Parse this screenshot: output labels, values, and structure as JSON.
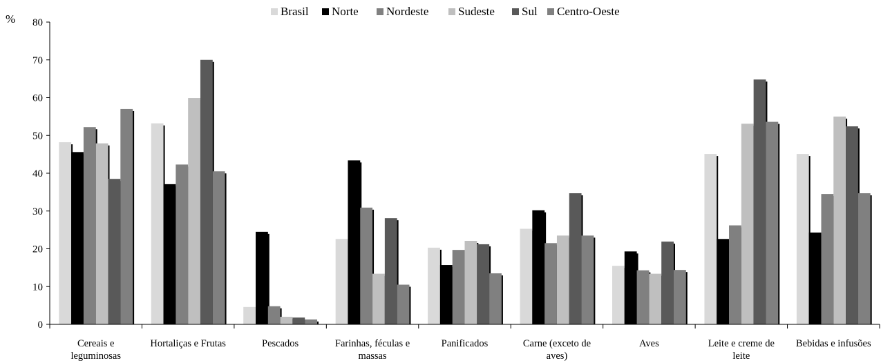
{
  "chart_data": {
    "type": "bar",
    "ylabel": "%",
    "ylim": [
      0,
      80
    ],
    "yticks": [
      0,
      10,
      20,
      30,
      40,
      50,
      60,
      70,
      80
    ],
    "grid": false,
    "legend_position": "top",
    "categories": [
      [
        "Cereais e",
        "leguminosas"
      ],
      [
        "Hortaliças e Frutas"
      ],
      [
        "Pescados"
      ],
      [
        "Farinhas, féculas e",
        "massas"
      ],
      [
        "Panificados"
      ],
      [
        "Carne (exceto de",
        "aves)"
      ],
      [
        "Aves"
      ],
      [
        "Leite e creme de",
        "leite"
      ],
      [
        "Bebidas e infusões"
      ]
    ],
    "series": [
      {
        "name": "Brasil",
        "color": "#d9d9d9",
        "values": [
          48.2,
          53.2,
          4.6,
          22.6,
          20.3,
          25.3,
          15.5,
          45.1,
          45.1
        ]
      },
      {
        "name": "Norte",
        "color": "#000000",
        "values": [
          45.6,
          37.1,
          24.5,
          43.4,
          15.7,
          30.2,
          19.3,
          22.6,
          24.3
        ]
      },
      {
        "name": "Nordeste",
        "color": "#808080",
        "values": [
          52.2,
          42.3,
          4.8,
          30.9,
          19.7,
          21.5,
          14.3,
          26.2,
          34.5
        ]
      },
      {
        "name": "Sudeste",
        "color": "#bfbfbf",
        "values": [
          47.9,
          59.9,
          2.0,
          13.4,
          22.1,
          23.5,
          13.4,
          53.1,
          55.0
        ]
      },
      {
        "name": "Sul",
        "color": "#595959",
        "values": [
          38.5,
          70.0,
          1.8,
          28.1,
          21.2,
          34.7,
          21.9,
          64.8,
          52.4
        ]
      },
      {
        "name": "Centro-Oeste",
        "color": "#808080",
        "values": [
          57.0,
          40.5,
          1.3,
          10.5,
          13.5,
          23.5,
          14.4,
          53.6,
          34.7
        ]
      }
    ]
  }
}
